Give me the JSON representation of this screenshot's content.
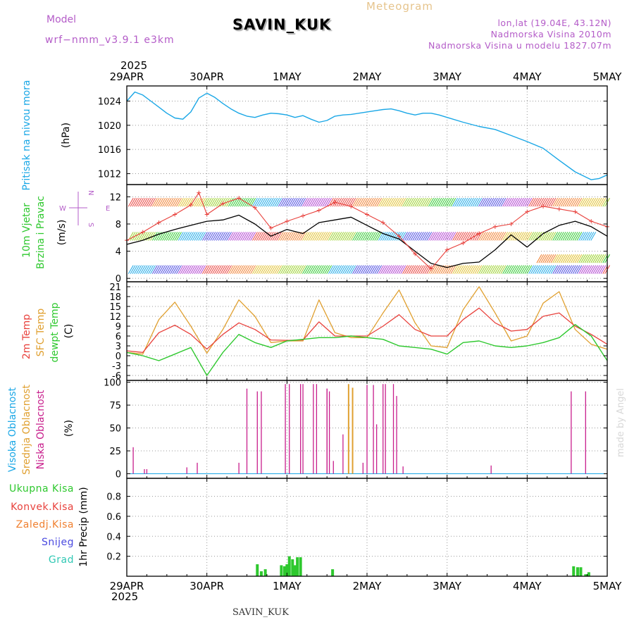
{
  "header": {
    "model_label": "Model",
    "model_name": "wrf−nmm_v3.9.1  e3km",
    "station": "SAVIN_KUK",
    "product": "Meteogram",
    "location": "lon,lat (19.04E, 43.12N)",
    "altitude": "Nadmorska Visina 2010m",
    "model_altitude": "Nadmorska Visina u modelu 1827.07m",
    "footer_station": "SAVIN_KUK",
    "credit": "made by Angel",
    "year": "2025"
  },
  "colors": {
    "pressure": "#1aa7e6",
    "temp2m": "#e8413c",
    "sfc_temp": "#e0a030",
    "dewpoint": "#2ec82e",
    "high_cloud": "#1aa7e6",
    "mid_cloud": "#e0a030",
    "low_cloud": "#c81e8c",
    "total_precip": "#2ec82e",
    "conv_precip": "#e8413c",
    "frozen_precip": "#f08030",
    "snow": "#4a4ae0",
    "graupel": "#30c8b4",
    "wind_speed": "#000000",
    "wind_gust": "#e8413c",
    "axis_title_cloud": "#1aa7e6"
  },
  "x_axis": {
    "start_day": 0,
    "end_day": 6,
    "tick_labels": [
      "29APR",
      "30APR",
      "1MAY",
      "2MAY",
      "3MAY",
      "4MAY",
      "5MAY"
    ],
    "tick_days": [
      0,
      1,
      2,
      3,
      4,
      5,
      6
    ]
  },
  "wind_legend": {
    "n": "N",
    "s": "S",
    "w": "W",
    "e": "E"
  },
  "chart_data": [
    {
      "type": "line",
      "title": "Pritisak na nivou mora",
      "ylabel": "(hPa)",
      "ylim": [
        1010.2,
        1026.5
      ],
      "yticks": [
        1012,
        1016,
        1020,
        1024
      ],
      "grid": true,
      "series": [
        {
          "name": "Pressure",
          "x": [
            0,
            0.1,
            0.2,
            0.3,
            0.4,
            0.5,
            0.6,
            0.7,
            0.8,
            0.9,
            1.0,
            1.1,
            1.2,
            1.3,
            1.4,
            1.5,
            1.6,
            1.7,
            1.8,
            1.9,
            2.0,
            2.1,
            2.2,
            2.3,
            2.4,
            2.5,
            2.6,
            2.7,
            2.8,
            2.9,
            3.0,
            3.1,
            3.2,
            3.3,
            3.4,
            3.5,
            3.6,
            3.7,
            3.8,
            3.9,
            4.0,
            4.2,
            4.4,
            4.6,
            4.8,
            5.0,
            5.2,
            5.4,
            5.6,
            5.8,
            5.9,
            6.0
          ],
          "values": [
            1024,
            1025.5,
            1025.0,
            1024.0,
            1023.0,
            1022.0,
            1021.2,
            1021.0,
            1022.2,
            1024.5,
            1025.3,
            1024.6,
            1023.6,
            1022.7,
            1022.0,
            1021.5,
            1021.3,
            1021.7,
            1022.0,
            1021.9,
            1021.7,
            1021.3,
            1021.6,
            1021.0,
            1020.5,
            1020.8,
            1021.5,
            1021.7,
            1021.8,
            1022.0,
            1022.2,
            1022.4,
            1022.6,
            1022.7,
            1022.4,
            1022.0,
            1021.7,
            1022.0,
            1022.0,
            1021.7,
            1021.3,
            1020.5,
            1019.8,
            1019.3,
            1018.3,
            1017.3,
            1016.2,
            1014.2,
            1012.3,
            1011.0,
            1011.2,
            1011.8
          ]
        }
      ]
    },
    {
      "type": "line",
      "title": "10m Vjetar",
      "subtitle": "Brzina i Pravac",
      "ylabel": "(m/s)",
      "ylim": [
        -0.5,
        13.8
      ],
      "yticks": [
        0,
        4,
        8,
        12
      ],
      "grid": true,
      "series": [
        {
          "name": "Wind speed",
          "x": [
            0,
            0.2,
            0.4,
            0.6,
            0.8,
            1.0,
            1.2,
            1.4,
            1.6,
            1.8,
            2.0,
            2.2,
            2.4,
            2.6,
            2.8,
            3.0,
            3.2,
            3.4,
            3.6,
            3.8,
            4.0,
            4.2,
            4.4,
            4.6,
            4.8,
            5.0,
            5.2,
            5.4,
            5.6,
            5.8,
            6.0
          ],
          "values": [
            5.0,
            5.6,
            6.5,
            7.2,
            7.8,
            8.4,
            8.6,
            9.3,
            8.0,
            6.2,
            7.2,
            6.6,
            8.2,
            8.6,
            9.0,
            7.8,
            6.6,
            5.8,
            4.0,
            2.2,
            1.6,
            2.2,
            2.4,
            4.2,
            6.4,
            4.6,
            6.6,
            7.8,
            8.4,
            7.6,
            6.2
          ]
        },
        {
          "name": "Wind gust",
          "x": [
            0,
            0.2,
            0.4,
            0.6,
            0.8,
            0.9,
            1.0,
            1.2,
            1.4,
            1.6,
            1.8,
            2.0,
            2.2,
            2.4,
            2.6,
            2.8,
            3.0,
            3.2,
            3.4,
            3.6,
            3.8,
            4.0,
            4.2,
            4.4,
            4.6,
            4.8,
            5.0,
            5.2,
            5.4,
            5.6,
            5.8,
            6.0
          ],
          "values": [
            5.6,
            6.8,
            8.2,
            9.4,
            10.8,
            12.6,
            9.4,
            11.0,
            11.8,
            10.4,
            7.4,
            8.4,
            9.2,
            10.0,
            11.2,
            10.6,
            9.4,
            8.2,
            6.2,
            3.6,
            1.4,
            4.2,
            5.2,
            6.6,
            7.6,
            8.0,
            9.8,
            10.6,
            10.2,
            9.8,
            8.4,
            7.6
          ]
        }
      ]
    },
    {
      "type": "line",
      "title": "2m Temp",
      "subtitle": "SFC Temp / dewpt Temp",
      "ylabel": "(C)",
      "ylim": [
        -7.5,
        22.5
      ],
      "yticks": [
        -6,
        -3,
        0,
        3,
        6,
        9,
        12,
        15,
        18,
        21
      ],
      "grid": true,
      "series": [
        {
          "name": "2m Temp",
          "x": [
            0,
            0.2,
            0.4,
            0.6,
            0.8,
            1.0,
            1.2,
            1.4,
            1.6,
            1.8,
            2.0,
            2.2,
            2.4,
            2.6,
            2.8,
            3.0,
            3.2,
            3.4,
            3.6,
            3.8,
            4.0,
            4.2,
            4.4,
            4.6,
            4.8,
            5.0,
            5.2,
            5.4,
            5.6,
            5.8,
            6.0
          ],
          "values": [
            1.5,
            1.0,
            7.0,
            9.3,
            6.5,
            2.0,
            6.5,
            10.0,
            8.0,
            4.8,
            4.7,
            4.8,
            10.3,
            6.0,
            6.0,
            6.0,
            9.0,
            12.5,
            8.0,
            6.0,
            6.0,
            11.0,
            14.5,
            10.0,
            7.5,
            8.0,
            12.0,
            13.0,
            9.0,
            6.5,
            3.5
          ]
        },
        {
          "name": "SFC Temp",
          "x": [
            0,
            0.2,
            0.4,
            0.6,
            0.8,
            1.0,
            1.2,
            1.4,
            1.6,
            1.8,
            2.0,
            2.2,
            2.4,
            2.6,
            2.8,
            3.0,
            3.2,
            3.4,
            3.6,
            3.8,
            4.0,
            4.2,
            4.4,
            4.6,
            4.8,
            5.0,
            5.2,
            5.4,
            5.6,
            5.8,
            6.0
          ],
          "values": [
            1.0,
            0.5,
            11.0,
            16.3,
            9.0,
            0.8,
            8.0,
            17.0,
            12.0,
            4.0,
            4.5,
            4.5,
            17.0,
            7.0,
            5.5,
            5.5,
            13.0,
            20.0,
            10.0,
            3.0,
            2.5,
            14.0,
            21.0,
            13.0,
            4.5,
            6.0,
            16.0,
            19.5,
            8.0,
            3.5,
            2.0
          ]
        },
        {
          "name": "dewpt Temp",
          "x": [
            0,
            0.2,
            0.4,
            0.6,
            0.8,
            1.0,
            1.2,
            1.4,
            1.6,
            1.8,
            2.0,
            2.2,
            2.4,
            2.6,
            2.8,
            3.0,
            3.2,
            3.4,
            3.6,
            3.8,
            4.0,
            4.2,
            4.4,
            4.6,
            4.8,
            5.0,
            5.2,
            5.4,
            5.6,
            5.8,
            6.0
          ],
          "values": [
            1.0,
            0.0,
            -1.5,
            0.5,
            2.5,
            -6.0,
            1.0,
            6.5,
            4.0,
            2.5,
            4.5,
            5.0,
            5.5,
            5.5,
            6.0,
            5.5,
            5.0,
            3.0,
            2.5,
            2.0,
            0.5,
            4.0,
            4.5,
            3.0,
            2.5,
            3.0,
            4.0,
            5.5,
            9.5,
            6.0,
            -1.5
          ]
        }
      ]
    },
    {
      "type": "bar",
      "title": "Niska Oblacnost",
      "subtitle": "Visoka Oblacnost / Srednja Oblacnost",
      "ylabel": "(%)",
      "ylim": [
        -5,
        102
      ],
      "yticks": [
        0,
        25,
        50,
        75,
        100
      ],
      "grid": true,
      "series": [
        {
          "name": "Low cloud",
          "x": [
            0.08,
            0.22,
            0.25,
            0.75,
            0.88,
            1.4,
            1.5,
            1.63,
            1.68,
            1.98,
            2.03,
            2.17,
            2.2,
            2.33,
            2.37,
            2.5,
            2.5,
            2.53,
            2.58,
            2.7,
            2.95,
            3.0,
            3.08,
            3.12,
            3.2,
            3.23,
            3.33,
            3.37,
            3.45,
            4.55,
            5.55,
            5.73
          ],
          "values": [
            29,
            5,
            5,
            7,
            12,
            12,
            93,
            90,
            90,
            98,
            98,
            98,
            98,
            98,
            98,
            93,
            93,
            90,
            14,
            43,
            12,
            97,
            97,
            54,
            98,
            98,
            98,
            85,
            8,
            9,
            90,
            90
          ]
        },
        {
          "name": "Mid cloud",
          "x": [
            2.77,
            2.82
          ],
          "values": [
            98,
            94
          ]
        }
      ]
    },
    {
      "type": "bar",
      "title": "1hr Precip",
      "ylabel": "(mm)",
      "ylim": [
        0,
        0.98
      ],
      "yticks": [
        0.2,
        0.4,
        0.6,
        0.8
      ],
      "grid": true,
      "legend": [
        "Ukupna Kisa",
        "Konvek.Kisa",
        "Zaledj.Kisa",
        "Snijeg",
        "Grad"
      ],
      "series": [
        {
          "name": "Ukupna Kisa",
          "x": [
            1.63,
            1.68,
            1.73,
            1.93,
            1.97,
            2.0,
            2.03,
            2.07,
            2.1,
            2.13,
            2.17,
            2.57,
            5.58,
            5.63,
            5.67,
            5.73,
            5.77
          ],
          "values": [
            0.12,
            0.05,
            0.07,
            0.11,
            0.1,
            0.12,
            0.2,
            0.17,
            0.11,
            0.19,
            0.19,
            0.07,
            0.1,
            0.09,
            0.09,
            0.02,
            0.04
          ]
        }
      ]
    }
  ]
}
